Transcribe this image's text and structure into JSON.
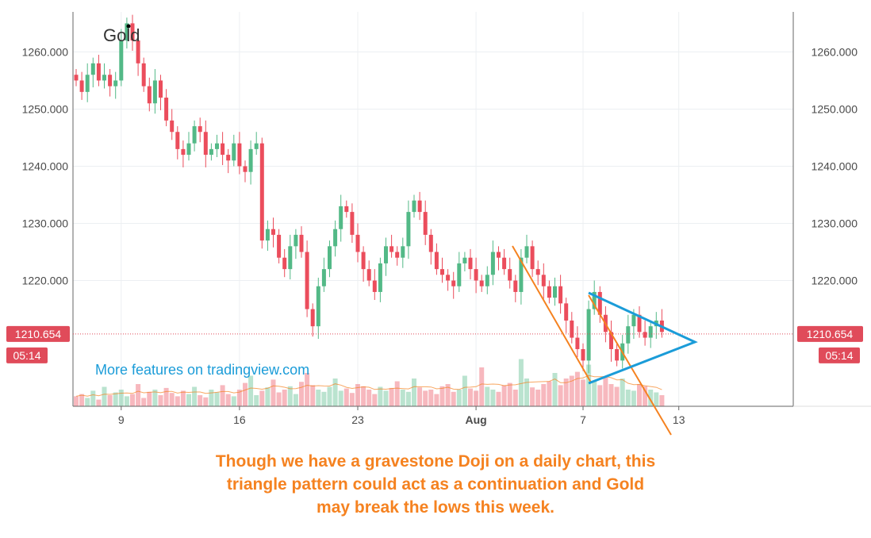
{
  "chart_data": {
    "type": "candlestick",
    "title": "Gold",
    "watermark": "More features on tradingview.com",
    "ylim": [
      1198,
      1267
    ],
    "yticks": [
      "1220.000",
      "1230.000",
      "1240.000",
      "1250.000",
      "1260.000"
    ],
    "ytick_values": [
      1220,
      1230,
      1240,
      1250,
      1260
    ],
    "xticks": [
      {
        "label": "9",
        "bar": 8,
        "bold": false
      },
      {
        "label": "16",
        "bar": 29,
        "bold": false
      },
      {
        "label": "23",
        "bar": 50,
        "bold": false
      },
      {
        "label": "Aug",
        "bar": 71,
        "bold": true
      },
      {
        "label": "7",
        "bar": 90,
        "bold": false
      },
      {
        "label": "13",
        "bar": 107,
        "bold": false
      }
    ],
    "bar_count": 115,
    "last_price": "1210.654",
    "last_price_value": 1210.654,
    "countdown": "05:14",
    "closes": [
      1255,
      1253,
      1256,
      1258,
      1255,
      1256,
      1254,
      1255,
      1262,
      1265,
      1262,
      1258,
      1254,
      1251,
      1255,
      1252,
      1248,
      1246,
      1243,
      1242,
      1244,
      1247,
      1246,
      1242,
      1243,
      1244,
      1242,
      1241,
      1244,
      1240,
      1239,
      1243,
      1244,
      1227,
      1229,
      1228,
      1224,
      1222,
      1226,
      1228,
      1225,
      1215,
      1212,
      1219,
      1222,
      1226,
      1229,
      1233,
      1232,
      1228,
      1225,
      1222,
      1220,
      1218,
      1223,
      1226,
      1225,
      1224,
      1226,
      1232,
      1234,
      1232,
      1228,
      1225,
      1222,
      1221,
      1220,
      1219,
      1223,
      1224,
      1222,
      1220,
      1219,
      1221,
      1225,
      1224,
      1222,
      1220,
      1218,
      1224,
      1226,
      1222,
      1221,
      1219,
      1217,
      1219,
      1216,
      1213,
      1210,
      1208,
      1206,
      1215,
      1218,
      1214,
      1211,
      1208,
      1206,
      1209,
      1212,
      1214,
      1211,
      1210,
      1212,
      1213,
      1211
    ],
    "volumes": [
      0.18,
      0.22,
      0.15,
      0.28,
      0.12,
      0.35,
      0.2,
      0.25,
      0.3,
      0.18,
      0.22,
      0.4,
      0.15,
      0.26,
      0.3,
      0.2,
      0.33,
      0.24,
      0.18,
      0.28,
      0.22,
      0.35,
      0.2,
      0.16,
      0.3,
      0.25,
      0.38,
      0.22,
      0.18,
      0.3,
      0.42,
      0.55,
      0.2,
      0.28,
      0.34,
      0.48,
      0.25,
      0.3,
      0.36,
      0.22,
      0.44,
      0.6,
      0.38,
      0.3,
      0.26,
      0.35,
      0.5,
      0.28,
      0.32,
      0.24,
      0.4,
      0.36,
      0.3,
      0.22,
      0.35,
      0.28,
      0.33,
      0.45,
      0.3,
      0.26,
      0.5,
      0.34,
      0.28,
      0.3,
      0.22,
      0.36,
      0.4,
      0.26,
      0.3,
      0.55,
      0.32,
      0.28,
      0.7,
      0.35,
      0.3,
      0.26,
      0.38,
      0.42,
      0.3,
      0.85,
      0.5,
      0.34,
      0.3,
      0.4,
      0.45,
      0.6,
      0.38,
      0.5,
      0.55,
      0.62,
      0.48,
      0.75,
      0.45,
      0.38,
      0.52,
      0.4,
      0.35,
      0.5,
      0.3,
      0.28,
      0.4,
      0.36,
      0.3,
      0.25,
      0.2
    ],
    "up_color": "#53b987",
    "down_color": "#eb4d5c",
    "annotation_color": "#f58220",
    "triangle_color": "#1b9cd8",
    "watermark_color": "#1b9cd8",
    "price_label_color": "#e04b5a"
  },
  "caption": [
    "Though we have a gravestone Doji on a daily chart, this",
    "triangle pattern could act as a continuation and Gold",
    "may break the lows this week."
  ]
}
